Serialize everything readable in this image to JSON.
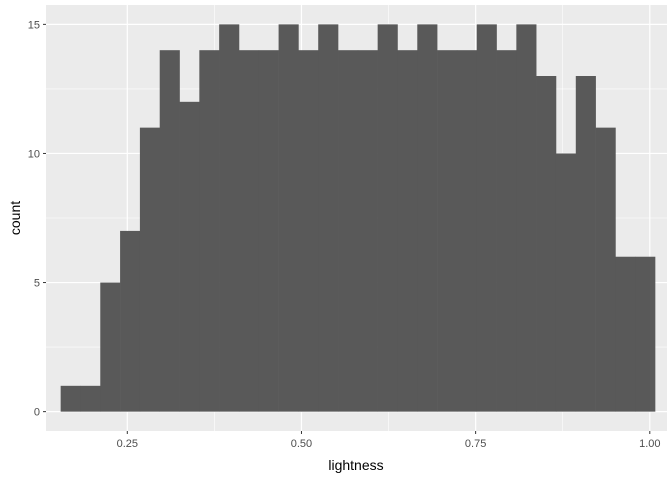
{
  "chart_data": {
    "type": "bar",
    "xlabel": "lightness",
    "ylabel": "count",
    "xlim": [
      0.1333,
      1.0247
    ],
    "ylim": [
      -0.75,
      15.75
    ],
    "x_ticks": [
      0.25,
      0.5,
      0.75,
      1.0
    ],
    "x_tick_labels": [
      "0.25",
      "0.50",
      "0.75",
      "1.00"
    ],
    "x_minor_ticks": [
      0.375,
      0.625,
      0.875
    ],
    "y_ticks": [
      0,
      5,
      10,
      15
    ],
    "y_tick_labels": [
      "0",
      "5",
      "10",
      "15"
    ],
    "y_minor_ticks": [
      2.5,
      7.5,
      12.5
    ],
    "grid": true,
    "panel_background": "#ebebeb",
    "grid_color": "#ffffff",
    "bar_color": "#595959",
    "bin_width": 0.02844,
    "bin_start": 0.15433,
    "counts": [
      1,
      1,
      5,
      7,
      11,
      14,
      12,
      14,
      15,
      14,
      14,
      15,
      14,
      15,
      14,
      14,
      15,
      14,
      15,
      14,
      14,
      15,
      14,
      15,
      13,
      10,
      13,
      11,
      6,
      6
    ]
  }
}
